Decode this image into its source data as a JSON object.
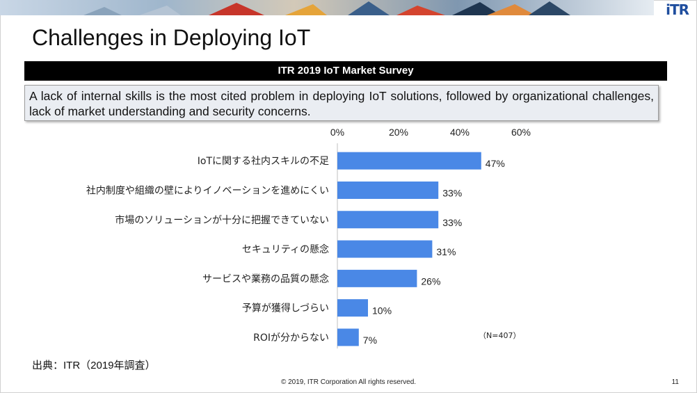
{
  "logo": "iTR",
  "title": "Challenges in Deploying IoT",
  "survey_title": "ITR 2019 IoT Market Survey",
  "summary": "A lack of internal skills is the most cited problem in deploying IoT solutions, followed by organizational challenges, lack of market understanding and security concerns.",
  "source": "出典：ITR（2019年調査）",
  "copyright": "© 2019, ITR Corporation  All rights reserved.",
  "page_number": "11",
  "colors": {
    "bar": "#4a88e6",
    "title_bar": "#000000",
    "summary_bg": "#eaedf2",
    "logo": "#1f4e9e"
  },
  "chart_data": {
    "type": "bar",
    "orientation": "horizontal",
    "categories": [
      "IoTに関する社内スキルの不足",
      "社内制度や組織の壁によりイノベーションを進めにくい",
      "市場のソリューションが十分に把握できていない",
      "セキュリティの懸念",
      "サービスや業務の品質の懸念",
      "予算が獲得しづらい",
      "ROIが分からない"
    ],
    "values": [
      47,
      33,
      33,
      31,
      26,
      10,
      7
    ],
    "value_labels": [
      "47%",
      "33%",
      "33%",
      "31%",
      "26%",
      "10%",
      "7%"
    ],
    "x_ticks": [
      "0%",
      "20%",
      "40%",
      "60%"
    ],
    "xlim": [
      0,
      60
    ],
    "grid": false,
    "axis_position": "top",
    "note": "（N=407）"
  }
}
